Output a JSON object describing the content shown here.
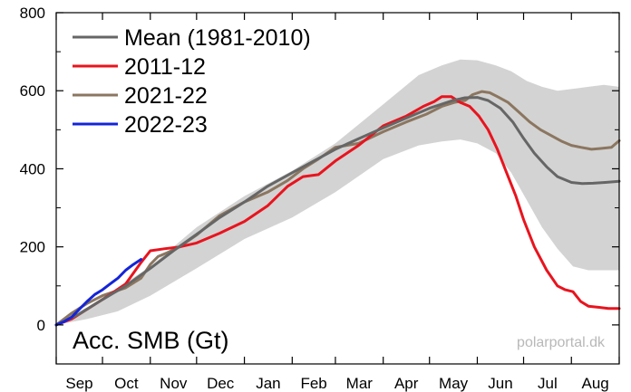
{
  "chart_data": {
    "type": "line",
    "title": "",
    "ylabel_in_plot": "Acc. SMB (Gt)",
    "watermark": "polarportal.dk",
    "ylim": [
      -100,
      800
    ],
    "yticks": [
      0,
      200,
      400,
      600,
      800
    ],
    "xlim": [
      0,
      365
    ],
    "months": [
      "Sep",
      "Oct",
      "Nov",
      "Dec",
      "Jan",
      "Feb",
      "Mar",
      "Apr",
      "May",
      "Jun",
      "Jul",
      "Aug"
    ],
    "month_starts": [
      0,
      30,
      61,
      91,
      122,
      153,
      181,
      212,
      242,
      273,
      303,
      334
    ],
    "grid": false,
    "legend_position": "top-left",
    "band": {
      "name": "",
      "color": "#d3d3d3",
      "x": [
        0,
        20,
        40,
        61,
        91,
        122,
        153,
        181,
        212,
        235,
        250,
        262,
        273,
        285,
        295,
        305,
        315,
        325,
        335,
        345,
        355,
        365
      ],
      "upper": [
        5,
        45,
        95,
        150,
        250,
        330,
        395,
        465,
        565,
        640,
        665,
        680,
        678,
        665,
        650,
        625,
        610,
        600,
        605,
        610,
        615,
        610
      ],
      "lower": [
        0,
        15,
        35,
        75,
        145,
        220,
        275,
        340,
        425,
        460,
        470,
        475,
        465,
        440,
        390,
        320,
        250,
        195,
        150,
        140,
        140,
        140
      ]
    },
    "series": [
      {
        "name": "Mean (1981-2010)",
        "color": "#666666",
        "x": [
          0,
          15,
          30,
          45,
          61,
          76,
          91,
          106,
          122,
          137,
          153,
          167,
          181,
          196,
          212,
          227,
          242,
          257,
          265,
          273,
          280,
          288,
          296,
          303,
          310,
          318,
          325,
          334,
          341,
          348,
          356,
          365
        ],
        "y": [
          0,
          28,
          65,
          100,
          145,
          190,
          232,
          275,
          315,
          355,
          390,
          420,
          450,
          477,
          505,
          530,
          555,
          575,
          582,
          583,
          575,
          555,
          520,
          478,
          440,
          405,
          380,
          365,
          362,
          363,
          365,
          368
        ]
      },
      {
        "name": "2011-12",
        "color": "#e8141e",
        "x": [
          0,
          10,
          20,
          30,
          45,
          55,
          61,
          70,
          80,
          91,
          106,
          122,
          137,
          150,
          160,
          170,
          181,
          196,
          212,
          227,
          238,
          245,
          250,
          256,
          262,
          268,
          274,
          280,
          286,
          292,
          298,
          303,
          310,
          318,
          325,
          330,
          335,
          340,
          345,
          352,
          358,
          365
        ],
        "y": [
          0,
          15,
          40,
          65,
          105,
          160,
          190,
          195,
          200,
          210,
          235,
          265,
          305,
          355,
          380,
          385,
          420,
          460,
          510,
          535,
          560,
          572,
          585,
          585,
          570,
          560,
          535,
          500,
          450,
          390,
          330,
          270,
          200,
          140,
          100,
          90,
          85,
          60,
          48,
          45,
          42,
          42
        ]
      },
      {
        "name": "2021-22",
        "color": "#8b7660",
        "x": [
          0,
          10,
          20,
          30,
          45,
          55,
          61,
          66,
          72,
          80,
          91,
          106,
          122,
          137,
          150,
          160,
          170,
          181,
          196,
          212,
          227,
          240,
          250,
          258,
          265,
          270,
          276,
          281,
          286,
          293,
          300,
          307,
          314,
          321,
          328,
          334,
          340,
          347,
          353,
          360,
          365
        ],
        "y": [
          0,
          30,
          55,
          75,
          95,
          120,
          155,
          175,
          185,
          200,
          230,
          280,
          315,
          340,
          370,
          400,
          425,
          455,
          465,
          495,
          520,
          540,
          560,
          570,
          575,
          590,
          598,
          595,
          585,
          570,
          545,
          520,
          500,
          485,
          470,
          460,
          455,
          450,
          452,
          455,
          472
        ]
      },
      {
        "name": "2022-23",
        "color": "#1424d8",
        "x": [
          0,
          5,
          10,
          15,
          20,
          25,
          30,
          35,
          40,
          45,
          50,
          55
        ],
        "y": [
          0,
          8,
          20,
          40,
          60,
          78,
          90,
          105,
          120,
          140,
          155,
          168
        ]
      }
    ]
  }
}
